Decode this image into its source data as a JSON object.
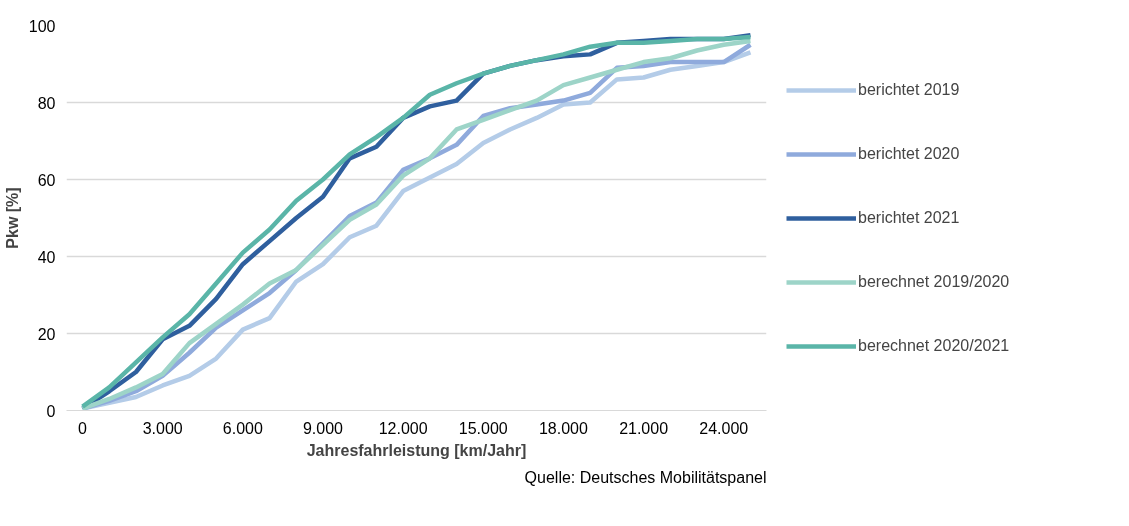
{
  "chart_data": {
    "type": "line",
    "xlabel": "Jahresfahrleistung [km/Jahr]",
    "ylabel": "Pkw [%]",
    "x": [
      0,
      1000,
      2000,
      3000,
      4000,
      5000,
      6000,
      7000,
      8000,
      9000,
      10000,
      11000,
      12000,
      13000,
      14000,
      15000,
      16000,
      17000,
      18000,
      19000,
      20000,
      21000,
      22000,
      23000,
      24000,
      25000
    ],
    "series": [
      {
        "name": "berichtet 2019",
        "color": "#b4cce8",
        "values": [
          0.5,
          2,
          3.5,
          6.5,
          9,
          13.5,
          21,
          24,
          33.5,
          38,
          45,
          48,
          57,
          60.5,
          64,
          69.5,
          73,
          76,
          79.5,
          80,
          86,
          86.5,
          88.5,
          89.5,
          90.5,
          93
        ]
      },
      {
        "name": "berichtet 2020",
        "color": "#8faadc",
        "values": [
          0.5,
          2.5,
          5,
          9,
          15,
          21.5,
          26,
          30.5,
          36.5,
          43.5,
          50.5,
          54,
          62.5,
          65.5,
          69,
          76.5,
          78.5,
          79.5,
          80.5,
          82.5,
          89,
          89.5,
          90.5,
          90.5,
          90.5,
          95
        ]
      },
      {
        "name": "berichtet 2021",
        "color": "#2f5f9e",
        "values": [
          0.5,
          5,
          10,
          18.5,
          22,
          29,
          38,
          44,
          50,
          55.5,
          65.5,
          68.5,
          76,
          79,
          80.5,
          87.5,
          89.5,
          91,
          92,
          92.5,
          95.5,
          96,
          96.5,
          96.5,
          96.5,
          97.5
        ]
      },
      {
        "name": "berechnet 2019/2020",
        "color": "#9dd4c8",
        "values": [
          0.5,
          3,
          6,
          9.5,
          17.5,
          22.5,
          27.5,
          33,
          36.5,
          43,
          49.5,
          53.5,
          61,
          65.5,
          73,
          75.5,
          78,
          80.5,
          84.5,
          86.5,
          88.5,
          90.5,
          91.5,
          93.5,
          95,
          96
        ]
      },
      {
        "name": "berechnet 2020/2021",
        "color": "#5ab5a8",
        "values": [
          1,
          6,
          12.5,
          19,
          25,
          33,
          41,
          47,
          54.5,
          60,
          66.5,
          71,
          76,
          82,
          85,
          87.5,
          89.5,
          91,
          92.5,
          94.5,
          95.5,
          95.5,
          96,
          96.5,
          96.5,
          97
        ]
      }
    ],
    "xlim": [
      -600,
      25600
    ],
    "ylim": [
      0,
      100
    ],
    "xticks": [
      0,
      {
        "value": 3000,
        "label": "3.000"
      },
      {
        "value": 6000,
        "label": "6.000"
      },
      {
        "value": 9000,
        "label": "9.000"
      },
      {
        "value": 12000,
        "label": "12.000"
      },
      {
        "value": 15000,
        "label": "15.000"
      },
      {
        "value": 18000,
        "label": "18.000"
      },
      {
        "value": 21000,
        "label": "21.000"
      },
      {
        "value": 24000,
        "label": "24.000"
      }
    ],
    "yticks": [
      0,
      20,
      40,
      60,
      80,
      100
    ],
    "grid": "y",
    "legend": "right",
    "marker": "none",
    "line_style": "solid",
    "annotations": [
      "Quelle: Deutsches Mobilitätspanel"
    ]
  }
}
